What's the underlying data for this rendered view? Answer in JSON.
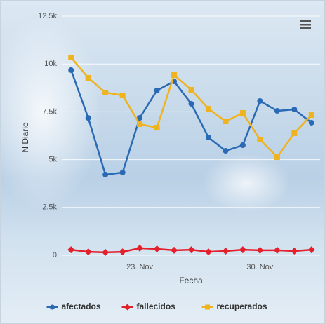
{
  "chart_data": {
    "type": "line",
    "x_label": "Fecha",
    "y_label": "N Diario",
    "categories": [
      null,
      null,
      null,
      null,
      "23. Nov",
      null,
      null,
      null,
      null,
      null,
      null,
      "30. Nov",
      null,
      null,
      null
    ],
    "series": [
      {
        "name": "afectados",
        "color": "#2a6ab5",
        "marker": "circle",
        "values": [
          9680,
          7180,
          4215,
          4325,
          7185,
          8615,
          9090,
          7920,
          6160,
          5460,
          5755,
          8065,
          7550,
          7625,
          6930
        ]
      },
      {
        "name": "fallecidos",
        "color": "#e3202b",
        "marker": "diamond",
        "values": [
          290,
          180,
          150,
          180,
          370,
          330,
          260,
          290,
          180,
          220,
          290,
          260,
          260,
          220,
          290
        ]
      },
      {
        "name": "recuperados",
        "color": "#efb320",
        "marker": "square",
        "values": [
          10340,
          9275,
          8505,
          8360,
          6855,
          6670,
          9420,
          8650,
          7660,
          7000,
          7440,
          6050,
          5130,
          6380,
          7330
        ]
      }
    ],
    "ylim": [
      0,
      12500
    ],
    "yticks": [
      0,
      {
        "value": 2500,
        "label": "2.5k"
      },
      {
        "value": 5000,
        "label": "5k"
      },
      {
        "value": 7500,
        "label": "7.5k"
      },
      {
        "value": 10000,
        "label": "10k"
      },
      {
        "value": 12500,
        "label": "12.5k"
      }
    ],
    "grid": true,
    "legend": "bottom"
  }
}
